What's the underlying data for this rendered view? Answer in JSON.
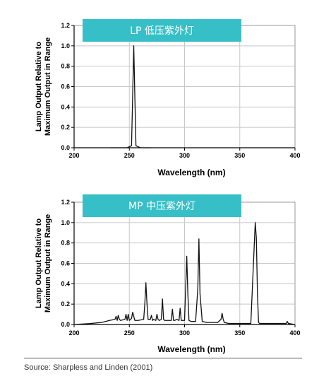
{
  "chart_data": [
    {
      "type": "line",
      "title": "LP 低压紫外灯",
      "xlabel": "Wavelength (nm)",
      "ylabel": [
        "Lamp Output Relative to",
        "Maximum Output in Range"
      ],
      "xlim": [
        200,
        400
      ],
      "ylim": [
        0,
        1.2
      ],
      "xticks": [
        "200",
        "250",
        "300",
        "350",
        "400"
      ],
      "yticks": [
        "0.0",
        "0.2",
        "0.4",
        "0.6",
        "0.8",
        "1.0",
        "1.2"
      ],
      "grid": true,
      "series": [
        {
          "x": [
            233,
            248,
            252,
            253,
            254,
            255,
            256,
            260,
            270
          ],
          "y": [
            0.0,
            0.0,
            0.02,
            0.5,
            1.0,
            0.5,
            0.02,
            0.0,
            0.0
          ]
        }
      ]
    },
    {
      "type": "line",
      "title": "MP 中压紫外灯",
      "xlabel": "Wavelength (nm)",
      "ylabel": [
        "Lamp Output Relative to",
        "Maximum Output in Range"
      ],
      "xlim": [
        200,
        400
      ],
      "ylim": [
        0,
        1.2
      ],
      "xticks": [
        "200",
        "250",
        "300",
        "350",
        "400"
      ],
      "yticks": [
        "0.0",
        "0.2",
        "0.4",
        "0.6",
        "0.8",
        "1.0",
        "1.2"
      ],
      "grid": true,
      "series": [
        {
          "x": [
            200,
            215,
            225,
            232,
            237,
            238,
            239,
            240,
            241,
            242,
            246,
            247,
            248,
            249,
            250,
            252,
            253,
            254,
            255,
            258,
            263,
            264,
            265,
            266,
            267,
            269,
            270,
            271,
            272,
            274,
            275,
            276,
            277,
            279,
            280,
            281,
            282,
            284,
            288,
            289,
            290,
            291,
            293,
            295,
            296,
            297,
            298,
            300,
            301,
            302,
            303,
            304,
            306,
            310,
            312,
            313,
            314,
            316,
            320,
            330,
            333,
            334,
            335,
            336,
            340,
            360,
            364,
            365,
            366,
            367,
            368,
            370,
            380,
            392,
            393,
            394,
            400
          ],
          "y": [
            0.0,
            0.01,
            0.02,
            0.04,
            0.05,
            0.08,
            0.04,
            0.09,
            0.05,
            0.04,
            0.05,
            0.1,
            0.04,
            0.1,
            0.04,
            0.06,
            0.12,
            0.08,
            0.04,
            0.04,
            0.05,
            0.2,
            0.41,
            0.2,
            0.05,
            0.05,
            0.09,
            0.04,
            0.05,
            0.04,
            0.1,
            0.05,
            0.04,
            0.05,
            0.25,
            0.05,
            0.04,
            0.04,
            0.04,
            0.15,
            0.04,
            0.04,
            0.05,
            0.04,
            0.16,
            0.04,
            0.04,
            0.04,
            0.35,
            0.67,
            0.3,
            0.04,
            0.03,
            0.03,
            0.35,
            0.84,
            0.3,
            0.03,
            0.02,
            0.02,
            0.05,
            0.11,
            0.05,
            0.02,
            0.01,
            0.01,
            1.0,
            0.85,
            0.3,
            0.02,
            0.01,
            0.01,
            0.01,
            0.01,
            0.03,
            0.01,
            0.0
          ]
        }
      ]
    }
  ],
  "source": "Source: Sharpless and Linden (2001)",
  "colors": {
    "banner": "#37bfc7",
    "line": "#111111",
    "grid": "#c8c8c8"
  }
}
